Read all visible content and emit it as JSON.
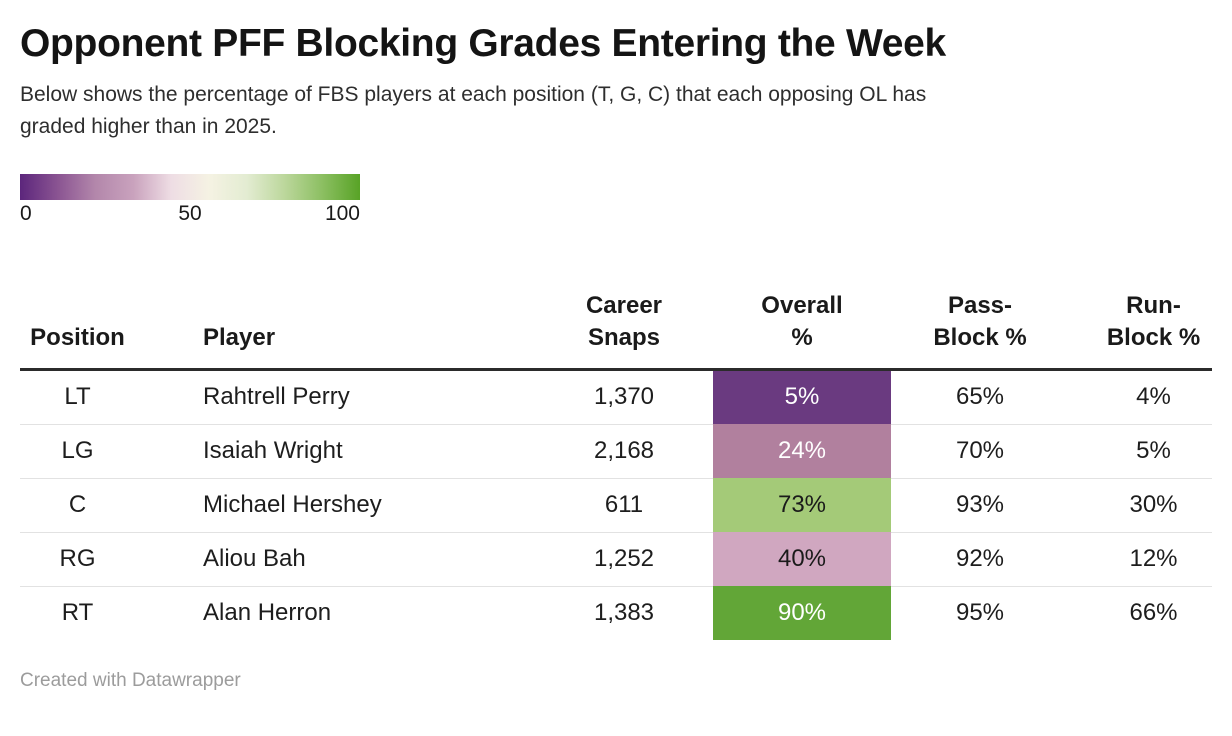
{
  "title": "Opponent PFF Blocking Grades Entering the Week",
  "subtitle": "Below shows the percentage of FBS players at each position (T, G, C) that each opposing OL has\ngraded higher than in 2025.",
  "legend": {
    "min_label": "0",
    "mid_label": "50",
    "max_label": "100",
    "gradient_stops": [
      "#5c267c",
      "#8a5492",
      "#b387ab",
      "#c9a2bd",
      "#eedde4",
      "#f5f2e3",
      "#e3ecd2",
      "#bcd79c",
      "#8cbf62",
      "#58a326"
    ]
  },
  "table": {
    "headers": [
      {
        "label": "Position"
      },
      {
        "label": "Player"
      },
      {
        "label": "Career\nSnaps"
      },
      {
        "label": "Overall\n%"
      },
      {
        "label": "Pass-\nBlock %"
      },
      {
        "label": "Run-\nBlock %"
      }
    ],
    "rows": [
      {
        "position": "LT",
        "player": "Rahtrell Perry",
        "career_snaps": "1,370",
        "overall_pct": "5%",
        "overall_bg": "#6a3a80",
        "overall_text": "#ffffff",
        "pass_block_pct": "65%",
        "run_block_pct": "4%"
      },
      {
        "position": "LG",
        "player": "Isaiah Wright",
        "career_snaps": "2,168",
        "overall_pct": "24%",
        "overall_bg": "#b1809e",
        "overall_text": "#ffffff",
        "pass_block_pct": "70%",
        "run_block_pct": "5%"
      },
      {
        "position": "C",
        "player": "Michael Hershey",
        "career_snaps": "611",
        "overall_pct": "73%",
        "overall_bg": "#a4ca78",
        "overall_text": "#1a1a1a",
        "pass_block_pct": "93%",
        "run_block_pct": "30%"
      },
      {
        "position": "RG",
        "player": "Aliou Bah",
        "career_snaps": "1,252",
        "overall_pct": "40%",
        "overall_bg": "#d0a7c0",
        "overall_text": "#1a1a1a",
        "pass_block_pct": "92%",
        "run_block_pct": "12%"
      },
      {
        "position": "RT",
        "player": "Alan Herron",
        "career_snaps": "1,383",
        "overall_pct": "90%",
        "overall_bg": "#62a637",
        "overall_text": "#ffffff",
        "pass_block_pct": "95%",
        "run_block_pct": "66%"
      }
    ]
  },
  "footer": "Created with Datawrapper",
  "chart_data": {
    "type": "table",
    "title": "Opponent PFF Blocking Grades Entering the Week",
    "subtitle": "Below shows the percentage of FBS players at each position (T, G, C) that each opposing OL has graded higher than in 2025.",
    "columns": [
      "Position",
      "Player",
      "Career Snaps",
      "Overall %",
      "Pass-Block %",
      "Run-Block %"
    ],
    "rows": [
      [
        "LT",
        "Rahtrell Perry",
        1370,
        5,
        65,
        4
      ],
      [
        "LG",
        "Isaiah Wright",
        2168,
        24,
        70,
        5
      ],
      [
        "C",
        "Michael Hershey",
        611,
        73,
        93,
        30
      ],
      [
        "RG",
        "Aliou Bah",
        1252,
        40,
        92,
        12
      ],
      [
        "RT",
        "Alan Herron",
        1383,
        90,
        95,
        66
      ]
    ],
    "color_scale": {
      "applies_to_column": "Overall %",
      "min": 0,
      "mid": 50,
      "max": 100,
      "min_color": "#5c267c",
      "mid_color": "#f5f2e3",
      "max_color": "#58a326"
    },
    "legend_position": "top-left",
    "footer": "Created with Datawrapper"
  }
}
